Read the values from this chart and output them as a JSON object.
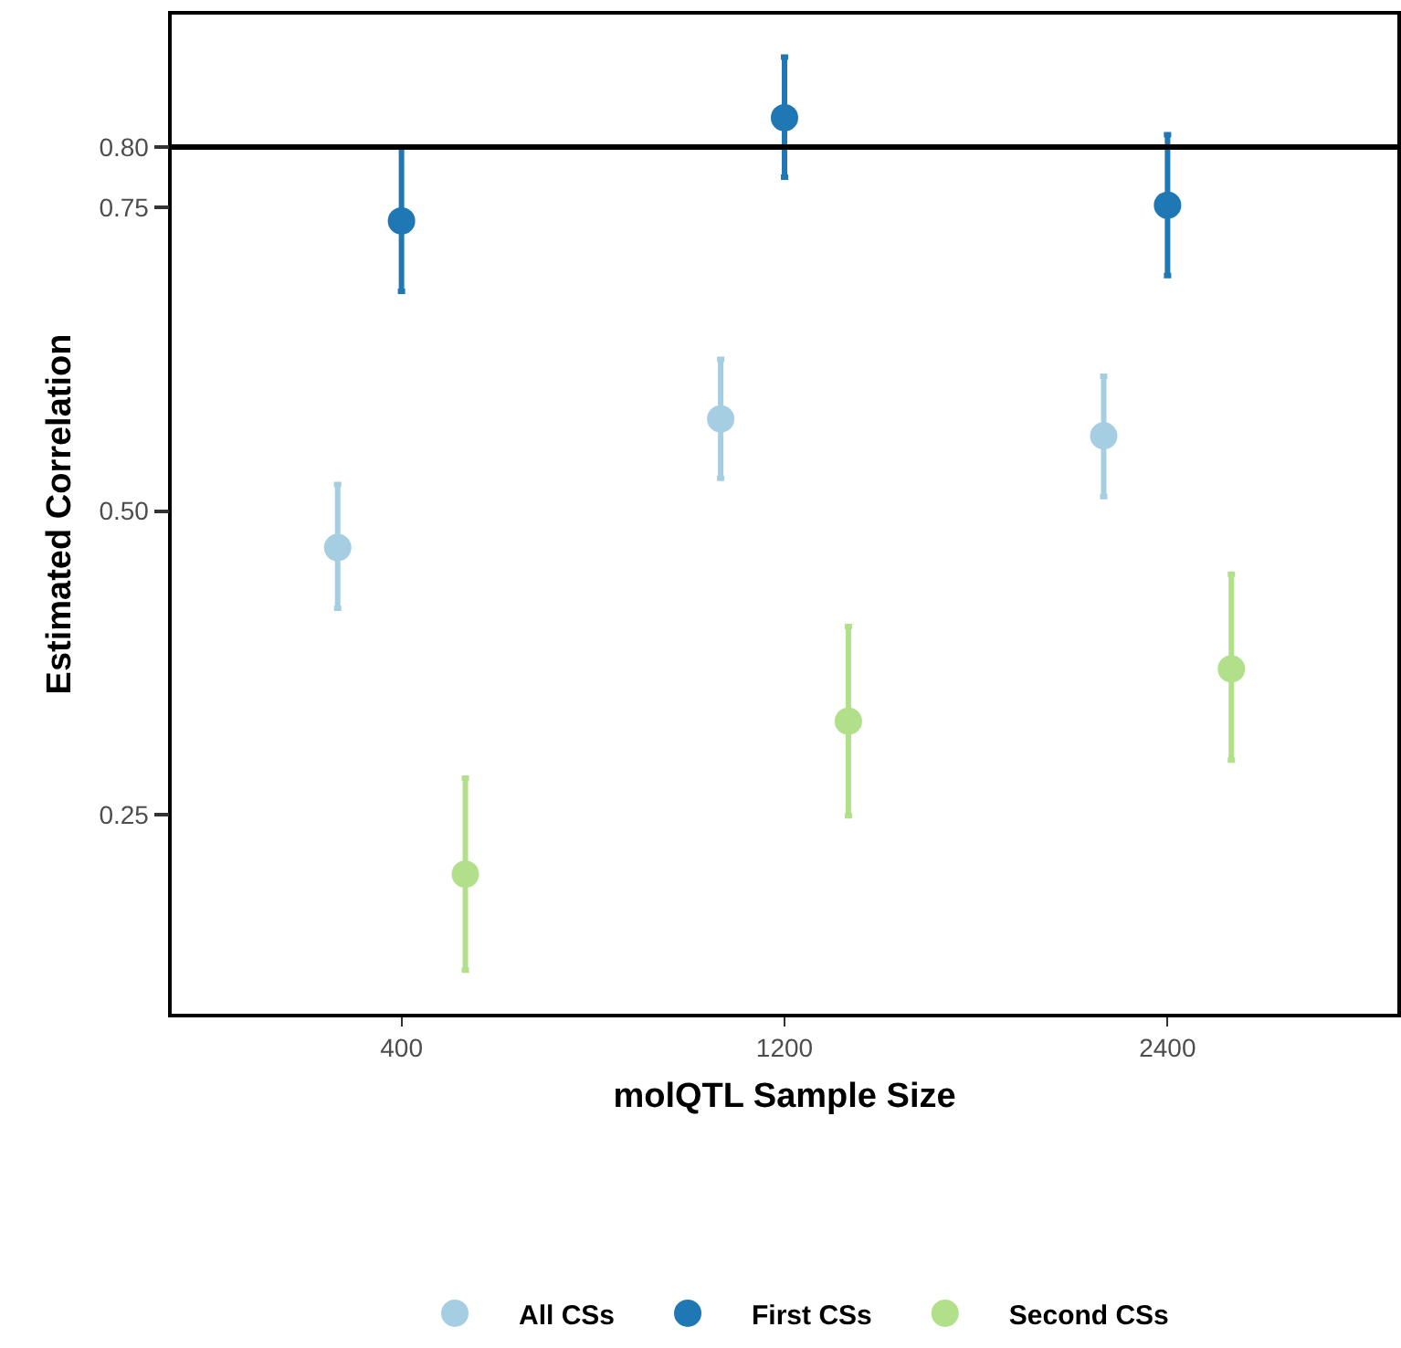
{
  "chart_data": {
    "type": "scatter",
    "xlabel": "molQTL Sample Size",
    "ylabel": "Estimated Correlation",
    "categories": [
      "400",
      "1200",
      "2400"
    ],
    "series": [
      {
        "name": "All CSs",
        "color": "#a6cee3",
        "values": [
          0.47,
          0.576,
          0.562
        ],
        "errors": [
          [
            0.42,
            0.522
          ],
          [
            0.527,
            0.625
          ],
          [
            0.512,
            0.611
          ]
        ]
      },
      {
        "name": "First CSs",
        "color": "#1f78b4",
        "values": [
          0.739,
          0.824,
          0.752
        ],
        "errors": [
          [
            0.681,
            0.8
          ],
          [
            0.775,
            0.874
          ],
          [
            0.694,
            0.81
          ]
        ]
      },
      {
        "name": "Second CSs",
        "color": "#b2df8a",
        "values": [
          0.201,
          0.327,
          0.37
        ],
        "errors": [
          [
            0.122,
            0.28
          ],
          [
            0.249,
            0.405
          ],
          [
            0.295,
            0.448
          ]
        ]
      }
    ],
    "ylim": [
      0.086,
      0.909
    ],
    "yticks": [
      {
        "value": 0.25,
        "label": "0.25"
      },
      {
        "value": 0.5,
        "label": "0.50"
      },
      0.75,
      {
        "value": 0.8,
        "label": "0.80"
      }
    ],
    "ref_lines": [
      {
        "axis": "y",
        "value": 0.8,
        "color": "#000000"
      }
    ],
    "grid": false,
    "legend": "bottom",
    "marker": "circle"
  }
}
